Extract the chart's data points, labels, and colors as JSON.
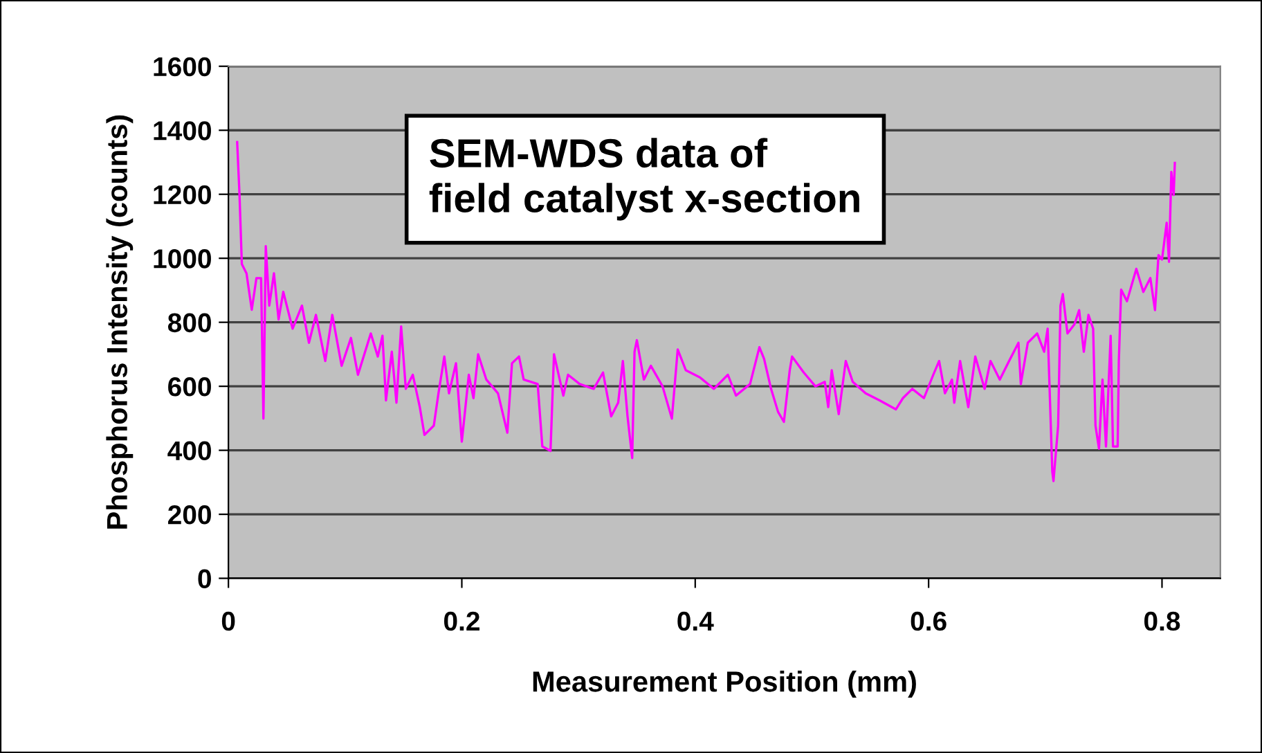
{
  "chart_data": {
    "type": "line",
    "xlabel": "Measurement Position (mm)",
    "ylabel": "Phosphorus Intensity (counts)",
    "annotations": [
      "SEM-WDS data of\nfield catalyst x-section"
    ],
    "xlim": [
      0,
      0.85
    ],
    "xticks": [
      0,
      0.2,
      0.4,
      0.6,
      0.8
    ],
    "ylim": [
      0,
      1600
    ],
    "yticks": [
      0,
      200,
      400,
      600,
      800,
      1000,
      1200,
      1400,
      1600
    ],
    "grid": "y",
    "legend": false,
    "marker": "none",
    "line_style": "solid",
    "series": [
      {
        "color": "#ff00ff",
        "x": [
          0.0075,
          0.0095,
          0.0115,
          0.0155,
          0.02,
          0.024,
          0.028,
          0.03,
          0.032,
          0.035,
          0.039,
          0.043,
          0.047,
          0.055,
          0.063,
          0.069,
          0.075,
          0.083,
          0.089,
          0.097,
          0.105,
          0.111,
          0.122,
          0.128,
          0.132,
          0.135,
          0.14,
          0.144,
          0.148,
          0.152,
          0.158,
          0.164,
          0.168,
          0.176,
          0.18,
          0.185,
          0.189,
          0.195,
          0.2,
          0.206,
          0.21,
          0.214,
          0.221,
          0.231,
          0.239,
          0.243,
          0.249,
          0.253,
          0.265,
          0.269,
          0.276,
          0.279,
          0.287,
          0.291,
          0.301,
          0.313,
          0.321,
          0.328,
          0.334,
          0.338,
          0.342,
          0.346,
          0.348,
          0.35,
          0.356,
          0.362,
          0.372,
          0.38,
          0.385,
          0.392,
          0.404,
          0.416,
          0.428,
          0.435,
          0.447,
          0.455,
          0.459,
          0.465,
          0.471,
          0.476,
          0.481,
          0.483,
          0.493,
          0.503,
          0.511,
          0.514,
          0.517,
          0.523,
          0.529,
          0.535,
          0.546,
          0.558,
          0.572,
          0.578,
          0.586,
          0.596,
          0.604,
          0.609,
          0.614,
          0.62,
          0.622,
          0.627,
          0.634,
          0.64,
          0.648,
          0.653,
          0.661,
          0.669,
          0.677,
          0.679,
          0.685,
          0.693,
          0.699,
          0.702,
          0.706,
          0.707,
          0.711,
          0.713,
          0.715,
          0.719,
          0.725,
          0.729,
          0.733,
          0.737,
          0.741,
          0.743,
          0.746,
          0.749,
          0.752,
          0.756,
          0.758,
          0.762,
          0.763,
          0.765,
          0.77,
          0.778,
          0.784,
          0.79,
          0.794,
          0.797,
          0.8,
          0.804,
          0.806,
          0.808,
          0.81,
          0.811
        ],
        "values": [
          1363,
          1198,
          982,
          953,
          839,
          938,
          938,
          499,
          1038,
          852,
          953,
          809,
          895,
          780,
          852,
          736,
          823,
          679,
          823,
          664,
          751,
          636,
          765,
          693,
          758,
          556,
          708,
          549,
          787,
          592,
          636,
          535,
          448,
          477,
          578,
          693,
          578,
          672,
          427,
          636,
          563,
          700,
          621,
          578,
          455,
          672,
          693,
          621,
          607,
          412,
          398,
          700,
          571,
          636,
          607,
          592,
          643,
          506,
          549,
          679,
          506,
          376,
          708,
          744,
          621,
          664,
          600,
          499,
          715,
          650,
          628,
          592,
          636,
          571,
          607,
          722,
          686,
          592,
          520,
          489,
          650,
          693,
          643,
          600,
          614,
          535,
          650,
          513,
          679,
          614,
          578,
          556,
          528,
          563,
          592,
          563,
          636,
          679,
          578,
          621,
          549,
          679,
          535,
          693,
          592,
          679,
          621,
          679,
          736,
          607,
          736,
          765,
          708,
          780,
          333,
          304,
          477,
          852,
          888,
          765,
          794,
          838,
          708,
          823,
          780,
          477,
          405,
          621,
          412,
          758,
          412,
          412,
          679,
          902,
          866,
          967,
          895,
          938,
          838,
          1010,
          996,
          1111,
          989,
          1270,
          1198,
          1298
        ]
      }
    ]
  }
}
